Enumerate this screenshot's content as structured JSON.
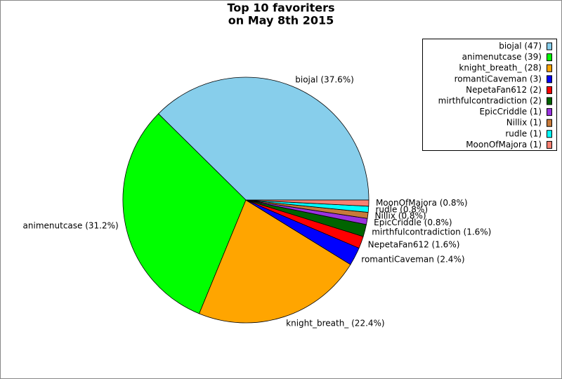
{
  "chart_data": {
    "type": "pie",
    "title": [
      "Top 10 favoriters",
      "on May 8th 2015"
    ],
    "categories": [
      "biojal",
      "animenutcase",
      "knight_breath_",
      "romantiCaveman",
      "NepetaFan612",
      "mirthfulcontradiction",
      "EpicCriddle",
      "Nillix",
      "rudle",
      "MoonOfMajora"
    ],
    "values": [
      47,
      39,
      28,
      3,
      2,
      2,
      1,
      1,
      1,
      1
    ],
    "slice_labels": [
      "biojal (37.6%)",
      "animenutcase (31.2%)",
      "knight_breath_ (22.4%)",
      "romantiCaveman (2.4%)",
      "NepetaFan612 (1.6%)",
      "mirthfulcontradiction (1.6%)",
      "EpicCriddle (0.8%)",
      "Nillix (0.8%)",
      "rudle (0.8%)",
      "MoonOfMajora (0.8%)"
    ],
    "legend_labels": [
      "biojal (47)",
      "animenutcase (39)",
      "knight_breath_ (28)",
      "romantiCaveman (3)",
      "NepetaFan612 (2)",
      "mirthfulcontradiction (2)",
      "EpicCriddle (1)",
      "Nillix (1)",
      "rudle (1)",
      "MoonOfMajora (1)"
    ],
    "colors": [
      "#87ceeb",
      "#00ff00",
      "#ffa500",
      "#0000ff",
      "#ff0000",
      "#006400",
      "#9a32e0",
      "#c87a3a",
      "#00ffff",
      "#fa8072"
    ],
    "legend": "top-right"
  }
}
